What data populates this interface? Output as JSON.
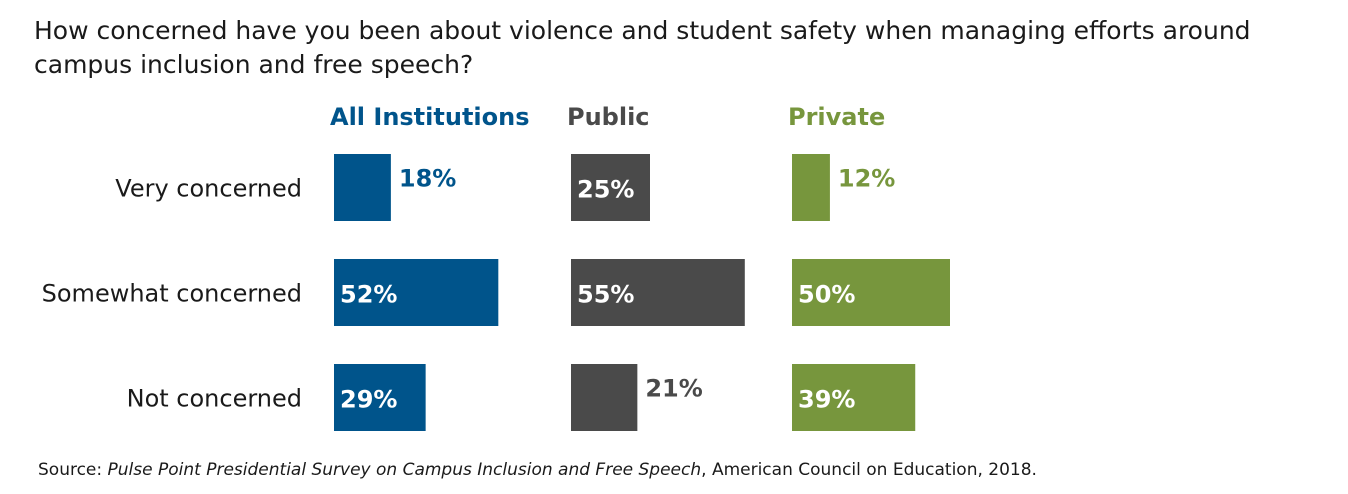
{
  "chart_data": {
    "type": "bar",
    "orientation": "horizontal",
    "title": "How concerned have you been about violence and student safety when managing efforts around campus inclusion and free speech?",
    "categories": [
      "Very concerned",
      "Somewhat concerned",
      "Not concerned"
    ],
    "series": [
      {
        "name": "All Institutions",
        "values": [
          18,
          52,
          29
        ],
        "labels": [
          "18%",
          "52%",
          "29%"
        ],
        "color": "#00548b"
      },
      {
        "name": "Public",
        "values": [
          25,
          55,
          21
        ],
        "labels": [
          "25%",
          "55%",
          "21%"
        ],
        "color": "#4a4a4a"
      },
      {
        "name": "Private",
        "values": [
          12,
          50,
          39
        ],
        "labels": [
          "12%",
          "50%",
          "39%"
        ],
        "color": "#77963d"
      }
    ],
    "unit": "%",
    "legend": "column headers",
    "grid": false
  },
  "source": {
    "prefix": "Source: ",
    "publication": "Pulse Point Presidential Survey on Campus Inclusion and Free Speech",
    "suffix": ", American Council on Education, 2018."
  }
}
